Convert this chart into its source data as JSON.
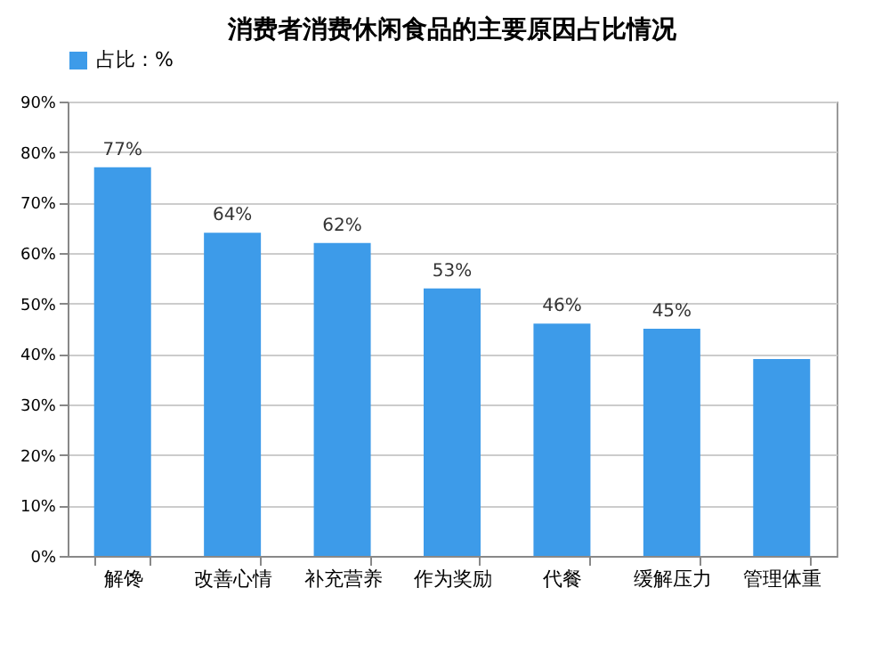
{
  "chart_data": {
    "type": "bar",
    "title": "消费者消费休闲食品的主要原因占比情况",
    "categories": [
      "解馋",
      "改善心情",
      "补充营养",
      "作为奖励",
      "代餐",
      "缓解压力",
      "管理体重"
    ],
    "series": [
      {
        "name": "占比：%",
        "color": "#3d9be9",
        "values": [
          77,
          64,
          62,
          53,
          46,
          45,
          39
        ]
      }
    ],
    "value_labels": [
      "77%",
      "64%",
      "62%",
      "53%",
      "46%",
      "45%",
      null
    ],
    "ylim": [
      0,
      90
    ],
    "yticks": [
      {
        "value": 0,
        "label": "0%"
      },
      {
        "value": 10,
        "label": "10%"
      },
      {
        "value": 20,
        "label": "20%"
      },
      {
        "value": 30,
        "label": "30%"
      },
      {
        "value": 40,
        "label": "40%"
      },
      {
        "value": 50,
        "label": "50%"
      },
      {
        "value": 60,
        "label": "60%"
      },
      {
        "value": 70,
        "label": "70%"
      },
      {
        "value": 80,
        "label": "80%"
      },
      {
        "value": 90,
        "label": "90%"
      }
    ],
    "grid": "y",
    "legend": "top"
  }
}
